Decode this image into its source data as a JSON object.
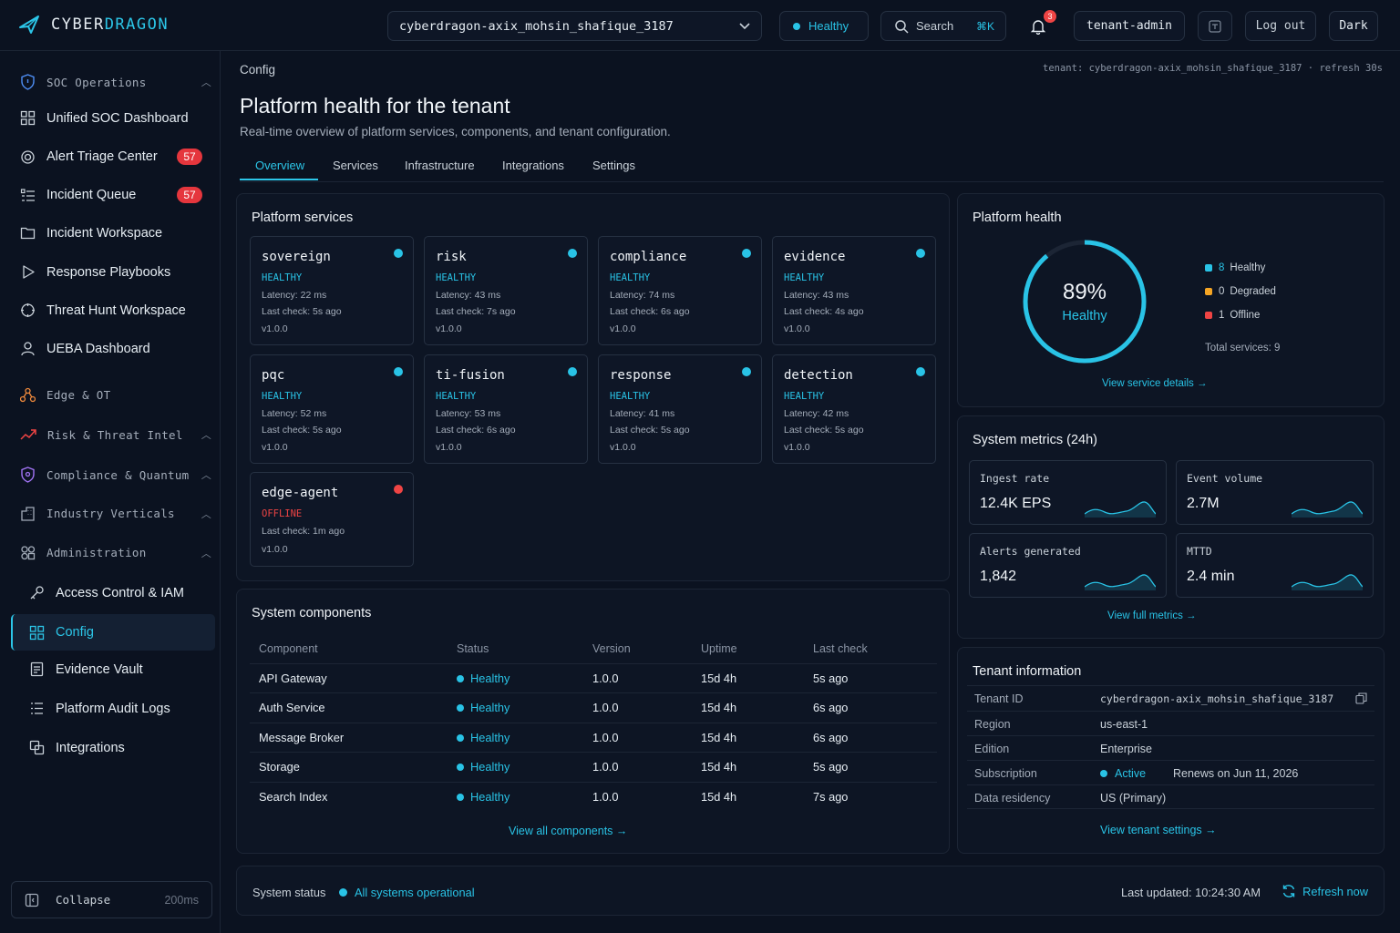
{
  "header": {
    "brand_part1": "CYBER",
    "brand_part2": "DRAGON",
    "tenant_selector": "cyberdragon-axix_mohsin_shafique_3187",
    "health_label": "Healthy",
    "search_label": "Search",
    "search_shortcut": "⌘K",
    "notification_count": "3",
    "user_label": "tenant-admin",
    "logout_label": "Log out",
    "theme_label": "Dark"
  },
  "sidebar": {
    "groups": {
      "soc": "SOC Operations",
      "edge": "Edge & OT",
      "risk": "Risk & Threat Intel",
      "compliance": "Compliance & Quantum",
      "industry": "Industry Verticals",
      "admin": "Administration"
    },
    "soc_items": [
      {
        "label": "Unified SOC Dashboard",
        "count": ""
      },
      {
        "label": "Alert Triage Center",
        "count": "57"
      },
      {
        "label": "Incident Queue",
        "count": "57"
      },
      {
        "label": "Incident Workspace",
        "count": ""
      },
      {
        "label": "Response Playbooks",
        "count": ""
      },
      {
        "label": "Threat Hunt Workspace",
        "count": ""
      },
      {
        "label": "UEBA Dashboard",
        "count": ""
      }
    ],
    "admin_items": [
      {
        "label": "Access Control & IAM"
      },
      {
        "label": "Config"
      },
      {
        "label": "Evidence Vault"
      },
      {
        "label": "Platform Audit Logs"
      },
      {
        "label": "Integrations"
      }
    ],
    "collapse_label": "Collapse",
    "collapse_timing": "200ms"
  },
  "page": {
    "breadcrumb": "Config",
    "tenant_meta": "tenant: cyberdragon-axix_mohsin_shafique_3187 · refresh 30s",
    "title": "Platform health for the tenant",
    "subtitle": "Real-time overview of platform services, components, and tenant configuration.",
    "tabs": [
      "Overview",
      "Services",
      "Infrastructure",
      "Integrations",
      "Settings"
    ]
  },
  "services": {
    "title": "Platform services",
    "items": [
      {
        "name": "sovereign",
        "status": "HEALTHY",
        "latency": "Latency: 22 ms",
        "check": "Last check: 5s ago",
        "version": "v1.0.0"
      },
      {
        "name": "risk",
        "status": "HEALTHY",
        "latency": "Latency: 43 ms",
        "check": "Last check: 7s ago",
        "version": "v1.0.0"
      },
      {
        "name": "compliance",
        "status": "HEALTHY",
        "latency": "Latency: 74 ms",
        "check": "Last check: 6s ago",
        "version": "v1.0.0"
      },
      {
        "name": "evidence",
        "status": "HEALTHY",
        "latency": "Latency: 43 ms",
        "check": "Last check: 4s ago",
        "version": "v1.0.0"
      },
      {
        "name": "pqc",
        "status": "HEALTHY",
        "latency": "Latency: 52 ms",
        "check": "Last check: 5s ago",
        "version": "v1.0.0"
      },
      {
        "name": "ti-fusion",
        "status": "HEALTHY",
        "latency": "Latency: 53 ms",
        "check": "Last check: 6s ago",
        "version": "v1.0.0"
      },
      {
        "name": "response",
        "status": "HEALTHY",
        "latency": "Latency: 41 ms",
        "check": "Last check: 5s ago",
        "version": "v1.0.0"
      },
      {
        "name": "detection",
        "status": "HEALTHY",
        "latency": "Latency: 42 ms",
        "check": "Last check: 5s ago",
        "version": "v1.0.0"
      },
      {
        "name": "edge-agent",
        "status": "OFFLINE",
        "check": "Last check: 1m ago",
        "version": "v1.0.0"
      }
    ]
  },
  "components": {
    "title": "System components",
    "headers": [
      "Component",
      "Status",
      "Version",
      "Uptime",
      "Last check"
    ],
    "rows": [
      [
        "API Gateway",
        "Healthy",
        "1.0.0",
        "15d 4h",
        "5s ago"
      ],
      [
        "Auth Service",
        "Healthy",
        "1.0.0",
        "15d 4h",
        "6s ago"
      ],
      [
        "Message Broker",
        "Healthy",
        "1.0.0",
        "15d 4h",
        "6s ago"
      ],
      [
        "Storage",
        "Healthy",
        "1.0.0",
        "15d 4h",
        "5s ago"
      ],
      [
        "Search Index",
        "Healthy",
        "1.0.0",
        "15d 4h",
        "7s ago"
      ]
    ],
    "link": "View all components →"
  },
  "health": {
    "title": "Platform health",
    "percent": "89%",
    "percent_value": 0.89,
    "label": "Healthy",
    "legend": [
      {
        "count": "8",
        "label": "Healthy",
        "color": "#29c3e6"
      },
      {
        "count": "0",
        "label": "Degraded",
        "color": "#f5a524"
      },
      {
        "count": "1",
        "label": "Offline",
        "color": "#ef4444"
      }
    ],
    "total": "Total services: 9",
    "link": "View service details →"
  },
  "metrics": {
    "title": "System metrics (24h)",
    "items": [
      {
        "label": "Ingest rate",
        "value": "12.4K EPS"
      },
      {
        "label": "Event volume",
        "value": "2.7M"
      },
      {
        "label": "Alerts generated",
        "value": "1,842"
      },
      {
        "label": "MTTD",
        "value": "2.4 min"
      }
    ],
    "link": "View full metrics →"
  },
  "tenant_info": {
    "title": "Tenant information",
    "rows": [
      {
        "key": "Tenant ID",
        "value": "cyberdragon-axix_mohsin_shafique_3187"
      },
      {
        "key": "Region",
        "value": "us-east-1"
      },
      {
        "key": "Edition",
        "value": "Enterprise"
      },
      {
        "key": "Subscription",
        "value": "Active",
        "extra": "Renews on Jun 11, 2026"
      },
      {
        "key": "Data residency",
        "value": "US (Primary)"
      }
    ],
    "link": "View tenant settings →"
  },
  "status_bar": {
    "label": "System status",
    "value": "All systems operational",
    "updated": "Last updated: 10:24:30 AM",
    "refresh": "Refresh now"
  }
}
